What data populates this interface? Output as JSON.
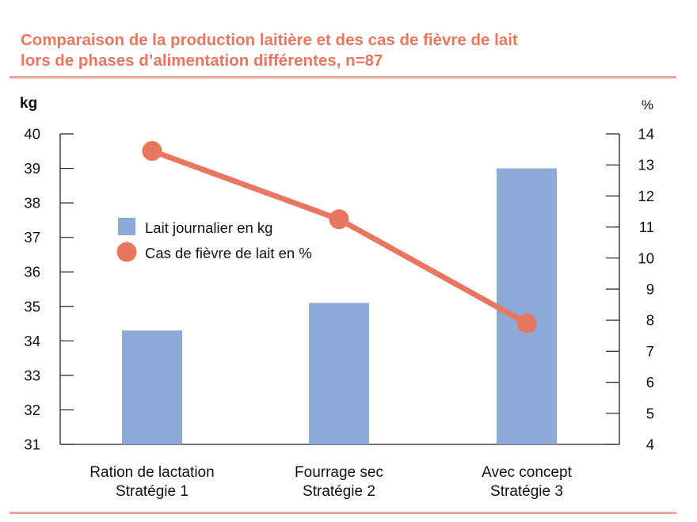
{
  "chart_data": {
    "type": "bar+line",
    "title": [
      "Comparaison de la production laitière et des cas de fièvre de lait",
      "lors de phases d’alimentation différentes, n=87"
    ],
    "categories": [
      [
        "Ration de lactation",
        "Stratégie 1"
      ],
      [
        "Fourrage sec",
        "Stratégie 2"
      ],
      [
        "Avec concept",
        "Stratégie 3"
      ]
    ],
    "series": [
      {
        "name": "Lait journalier en kg",
        "type": "bar",
        "axis": "left",
        "color": "#8caad8",
        "values": [
          34.3,
          35.1,
          39.0
        ]
      },
      {
        "name": "Cas de fièvre de lait en %",
        "type": "line",
        "axis": "right",
        "color": "#e9765f",
        "values": [
          13.45,
          11.25,
          7.9
        ]
      }
    ],
    "y_left": {
      "label": "kg",
      "min": 31,
      "max": 40,
      "ticks": [
        "31",
        "32",
        "33",
        "34",
        "35",
        "36",
        "37",
        "38",
        "39",
        "40"
      ]
    },
    "y_right": {
      "label": "%",
      "min": 4,
      "max": 14,
      "ticks": [
        "4",
        "5",
        "6",
        "7",
        "8",
        "9",
        "10",
        "11",
        "12",
        "13",
        "14"
      ]
    },
    "legend_position": "upper-left-inside"
  }
}
